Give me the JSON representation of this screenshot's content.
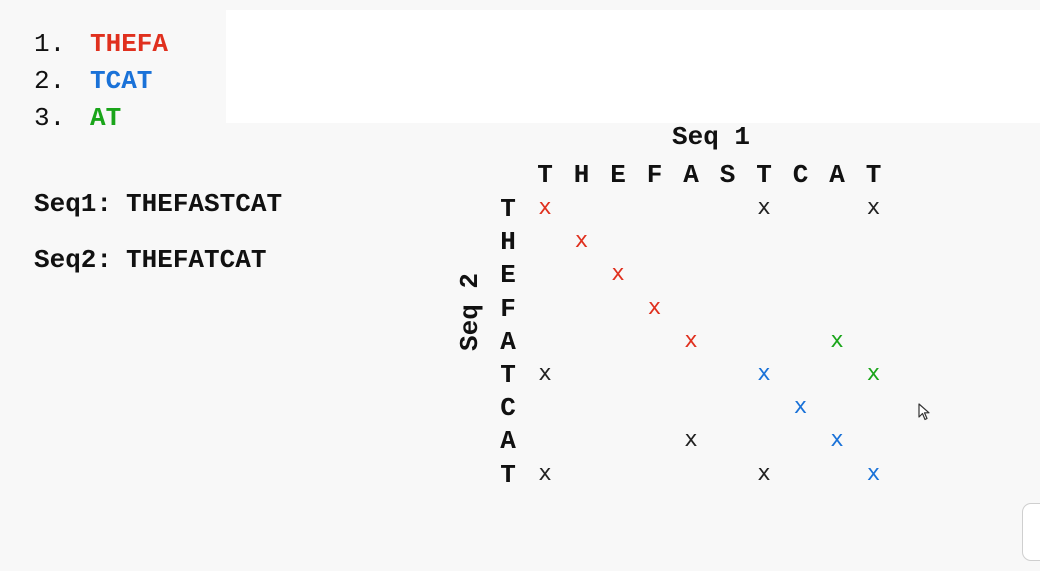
{
  "colors": {
    "red": "#e0301e",
    "blue": "#1a72d8",
    "green": "#1aa51a",
    "black": "#222222"
  },
  "list": [
    {
      "num": "1.",
      "text": "THEFA",
      "color": "#e0301e"
    },
    {
      "num": "2.",
      "text": "TCAT",
      "color": "#1a72d8"
    },
    {
      "num": "3.",
      "text": "AT",
      "color": "#1aa51a"
    }
  ],
  "sequences": {
    "seq1_label": "Seq1:",
    "seq1_value": "THEFASTCAT",
    "seq2_label": "Seq2:",
    "seq2_value": "THEFATCAT"
  },
  "matrix": {
    "seq1_title": "Seq 1",
    "seq2_title": "Seq 2",
    "columns": [
      "T",
      "H",
      "E",
      "F",
      "A",
      "S",
      "T",
      "C",
      "A",
      "T"
    ],
    "rows": [
      "T",
      "H",
      "E",
      "F",
      "A",
      "T",
      "C",
      "A",
      "T"
    ],
    "mark": "x",
    "cells": [
      {
        "row": 0,
        "col": 0,
        "color": "red"
      },
      {
        "row": 0,
        "col": 6,
        "color": "black"
      },
      {
        "row": 0,
        "col": 9,
        "color": "black"
      },
      {
        "row": 1,
        "col": 1,
        "color": "red"
      },
      {
        "row": 2,
        "col": 2,
        "color": "red"
      },
      {
        "row": 3,
        "col": 3,
        "color": "red"
      },
      {
        "row": 4,
        "col": 4,
        "color": "red"
      },
      {
        "row": 4,
        "col": 8,
        "color": "green"
      },
      {
        "row": 5,
        "col": 0,
        "color": "black"
      },
      {
        "row": 5,
        "col": 6,
        "color": "blue"
      },
      {
        "row": 5,
        "col": 9,
        "color": "green"
      },
      {
        "row": 6,
        "col": 7,
        "color": "blue"
      },
      {
        "row": 7,
        "col": 4,
        "color": "black"
      },
      {
        "row": 7,
        "col": 8,
        "color": "blue"
      },
      {
        "row": 8,
        "col": 0,
        "color": "black"
      },
      {
        "row": 8,
        "col": 6,
        "color": "black"
      },
      {
        "row": 8,
        "col": 9,
        "color": "blue"
      }
    ]
  }
}
